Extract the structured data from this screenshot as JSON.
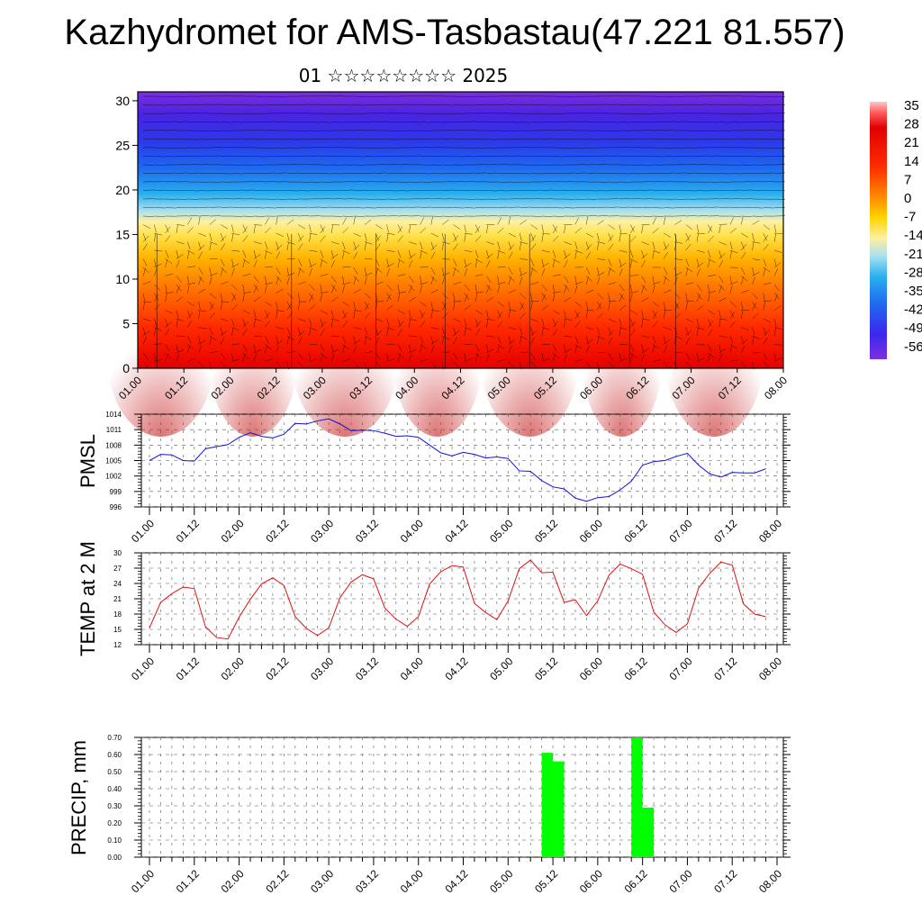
{
  "header": {
    "title": "Kazhydromet for AMS-Tasbastau(47.221 81.557)",
    "subtitle": "01 ☆☆☆☆☆☆☆☆ 2025"
  },
  "colors": {
    "pmsl_line": "#1010e0",
    "temp_line": "#e01010",
    "precip_bar": "#00ff00",
    "grid": "#555555"
  },
  "chart_data": [
    {
      "type": "heatmap",
      "name": "cross-section",
      "x_ticks": [
        "01.00",
        "01.12",
        "02.00",
        "02.12",
        "03.00",
        "03.12",
        "04.00",
        "04.12",
        "05.00",
        "05.12",
        "06.00",
        "06.12",
        "07.00",
        "07.12",
        "08.00"
      ],
      "y_ticks": [
        "0",
        "5",
        "10",
        "15",
        "20",
        "25",
        "30"
      ],
      "ylim": [
        0,
        31
      ],
      "colorbar": {
        "labels": [
          "35",
          "28",
          "21",
          "14",
          "7",
          "0",
          "-7",
          "-14",
          "-21",
          "-28",
          "-35",
          "-42",
          "-49",
          "-56"
        ],
        "range": [
          -60,
          38
        ]
      },
      "overlay": "wind barbs"
    },
    {
      "type": "line",
      "ylabel": "PMSL",
      "x_ticks": [
        "01.00",
        "01.12",
        "02.00",
        "02.12",
        "03.00",
        "03.12",
        "04.00",
        "04.12",
        "05.00",
        "05.12",
        "06.00",
        "06.12",
        "07.00",
        "07.12",
        "08.00"
      ],
      "y_ticks": [
        "996",
        "999",
        "1002",
        "1005",
        "1008",
        "1011",
        "1014"
      ],
      "ylim": [
        996,
        1014
      ],
      "x_hours": [
        0,
        3,
        6,
        9,
        12,
        15,
        18,
        21,
        24,
        27,
        30,
        33,
        36,
        39,
        42,
        45,
        48,
        51,
        54,
        57,
        60,
        63,
        66,
        69,
        72,
        75,
        78,
        81,
        84,
        87,
        90,
        93,
        96,
        99,
        102,
        105,
        108,
        111,
        114,
        117,
        120,
        123,
        126,
        129,
        132,
        135,
        138,
        141,
        144,
        147,
        150,
        153,
        156,
        159,
        162,
        165
      ],
      "values": [
        1005.0,
        1006.2,
        1006.1,
        1005.0,
        1004.9,
        1007.3,
        1007.7,
        1008.1,
        1009.5,
        1010.4,
        1009.7,
        1009.4,
        1010.1,
        1012.2,
        1012.1,
        1012.7,
        1013.1,
        1012.1,
        1010.8,
        1010.9,
        1010.8,
        1010.3,
        1009.7,
        1009.8,
        1009.5,
        1008.0,
        1006.5,
        1005.9,
        1006.6,
        1006.2,
        1005.5,
        1005.7,
        1005.4,
        1003.0,
        1002.9,
        1001.1,
        999.9,
        999.5,
        997.7,
        997.1,
        997.8,
        998.0,
        999.3,
        1001.0,
        1004.1,
        1004.8,
        1005.0,
        1005.8,
        1006.4,
        1004.1,
        1002.4,
        1001.8,
        1002.7,
        1002.6,
        1002.6,
        1003.4
      ]
    },
    {
      "type": "line",
      "ylabel": "TEMP at 2 M",
      "x_ticks": [
        "01.00",
        "01.12",
        "02.00",
        "02.12",
        "03.00",
        "03.12",
        "04.00",
        "04.12",
        "05.00",
        "05.12",
        "06.00",
        "06.12",
        "07.00",
        "07.12",
        "08.00"
      ],
      "y_ticks": [
        "12",
        "15",
        "18",
        "21",
        "24",
        "27",
        "30"
      ],
      "ylim": [
        12,
        30
      ],
      "x_hours": [
        0,
        3,
        6,
        9,
        12,
        15,
        18,
        21,
        24,
        27,
        30,
        33,
        36,
        39,
        42,
        45,
        48,
        51,
        54,
        57,
        60,
        63,
        66,
        69,
        72,
        75,
        78,
        81,
        84,
        87,
        90,
        93,
        96,
        99,
        102,
        105,
        108,
        111,
        114,
        117,
        120,
        123,
        126,
        129,
        132,
        135,
        138,
        141,
        144,
        147,
        150,
        153,
        156,
        159,
        162,
        165
      ],
      "values": [
        15.3,
        20.3,
        22.0,
        23.3,
        23.0,
        15.5,
        13.4,
        13.1,
        17.4,
        20.9,
        23.9,
        25.1,
        23.6,
        17.5,
        15.2,
        13.8,
        15.3,
        21.2,
        24.3,
        25.7,
        24.9,
        19.2,
        17.0,
        15.6,
        17.5,
        23.9,
        26.3,
        27.5,
        27.2,
        20.1,
        18.3,
        16.9,
        20.6,
        26.9,
        28.6,
        26.1,
        26.2,
        20.3,
        20.8,
        17.7,
        20.6,
        25.6,
        27.8,
        26.9,
        25.8,
        18.4,
        15.9,
        14.4,
        16.1,
        23.1,
        26.0,
        28.2,
        27.6,
        20.0,
        18.0,
        17.5
      ]
    },
    {
      "type": "bar",
      "ylabel": "PRECIP, mm",
      "x_ticks": [
        "01.00",
        "01.12",
        "02.00",
        "02.12",
        "03.00",
        "03.12",
        "04.00",
        "04.12",
        "05.00",
        "05.12",
        "06.00",
        "06.12",
        "07.00",
        "07.12",
        "08.00"
      ],
      "y_ticks": [
        "0.00",
        "0.10",
        "0.20",
        "0.30",
        "0.40",
        "0.50",
        "0.60",
        "0.70"
      ],
      "ylim": [
        0,
        0.7
      ],
      "bars": [
        {
          "start_hour": 105,
          "end_hour": 108,
          "value": 0.61
        },
        {
          "start_hour": 108,
          "end_hour": 111,
          "value": 0.56
        },
        {
          "start_hour": 129,
          "end_hour": 132,
          "value": 0.7
        },
        {
          "start_hour": 132,
          "end_hour": 135,
          "value": 0.29
        }
      ]
    }
  ]
}
